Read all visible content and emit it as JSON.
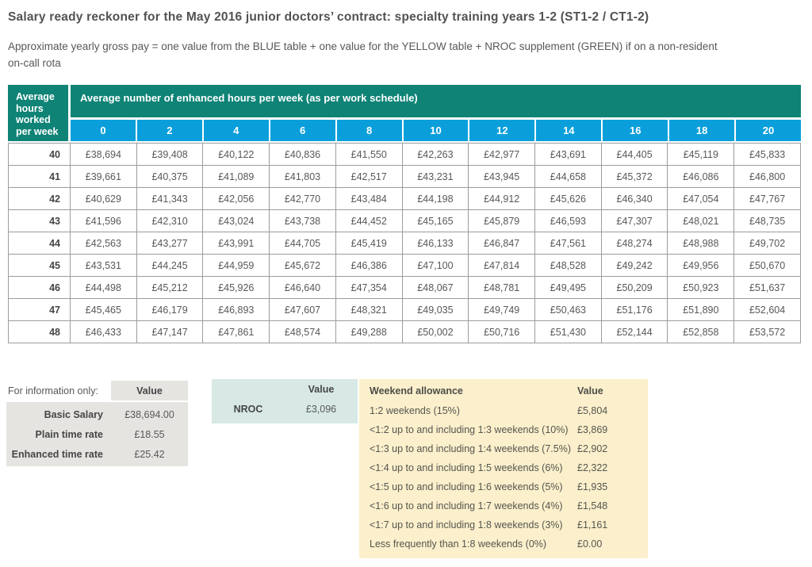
{
  "colors": {
    "teal_header": "#0E8376",
    "blue_header": "#0A9FDB",
    "grid_border": "#9A9C9E",
    "info_bg": "#E6E4E0",
    "nroc_bg": "#D8E9E5",
    "weekend_bg": "#FBEFCC",
    "title_text": "#525254",
    "body_text": "#57585A"
  },
  "header": {
    "title": "Salary ready reckoner for the May 2016 junior doctors’ contract: specialty training years 1-2 (ST1-2 / CT1-2)",
    "subtitle_line1": "Approximate yearly gross pay = one value from the BLUE table + one value for the YELLOW table + NROC supplement (GREEN) if on a non-resident",
    "subtitle_line2": "on-call rota"
  },
  "main_table": {
    "corner_header": "Average hours worked per week",
    "group_header": "Average number of enhanced hours per week (as per work schedule)",
    "column_headers": [
      "0",
      "2",
      "4",
      "6",
      "8",
      "10",
      "12",
      "14",
      "16",
      "18",
      "20"
    ],
    "rows": [
      {
        "hours": "40",
        "values": [
          "£38,694",
          "£39,408",
          "£40,122",
          "£40,836",
          "£41,550",
          "£42,263",
          "£42,977",
          "£43,691",
          "£44,405",
          "£45,119",
          "£45,833"
        ]
      },
      {
        "hours": "41",
        "values": [
          "£39,661",
          "£40,375",
          "£41,089",
          "£41,803",
          "£42,517",
          "£43,231",
          "£43,945",
          "£44,658",
          "£45,372",
          "£46,086",
          "£46,800"
        ]
      },
      {
        "hours": "42",
        "values": [
          "£40,629",
          "£41,343",
          "£42,056",
          "£42,770",
          "£43,484",
          "£44,198",
          "£44,912",
          "£45,626",
          "£46,340",
          "£47,054",
          "£47,767"
        ]
      },
      {
        "hours": "43",
        "values": [
          "£41,596",
          "£42,310",
          "£43,024",
          "£43,738",
          "£44,452",
          "£45,165",
          "£45,879",
          "£46,593",
          "£47,307",
          "£48,021",
          "£48,735"
        ]
      },
      {
        "hours": "44",
        "values": [
          "£42,563",
          "£43,277",
          "£43,991",
          "£44,705",
          "£45,419",
          "£46,133",
          "£46,847",
          "£47,561",
          "£48,274",
          "£48,988",
          "£49,702"
        ]
      },
      {
        "hours": "45",
        "values": [
          "£43,531",
          "£44,245",
          "£44,959",
          "£45,672",
          "£46,386",
          "£47,100",
          "£47,814",
          "£48,528",
          "£49,242",
          "£49,956",
          "£50,670"
        ]
      },
      {
        "hours": "46",
        "values": [
          "£44,498",
          "£45,212",
          "£45,926",
          "£46,640",
          "£47,354",
          "£48,067",
          "£48,781",
          "£49,495",
          "£50,209",
          "£50,923",
          "£51,637"
        ]
      },
      {
        "hours": "47",
        "values": [
          "£45,465",
          "£46,179",
          "£46,893",
          "£47,607",
          "£48,321",
          "£49,035",
          "£49,749",
          "£50,463",
          "£51,176",
          "£51,890",
          "£52,604"
        ]
      },
      {
        "hours": "48",
        "values": [
          "£46,433",
          "£47,147",
          "£47,861",
          "£48,574",
          "£49,288",
          "£50,002",
          "£50,716",
          "£51,430",
          "£52,144",
          "£52,858",
          "£53,572"
        ]
      }
    ]
  },
  "info_table": {
    "caption": "For information only:",
    "value_header": "Value",
    "rows": [
      {
        "label": "Basic Salary",
        "value": "£38,694.00"
      },
      {
        "label": "Plain time rate",
        "value": "£18.55"
      },
      {
        "label": "Enhanced time rate",
        "value": "£25.42"
      }
    ]
  },
  "nroc_table": {
    "value_header": "Value",
    "row": {
      "label": "NROC",
      "value": "£3,096"
    }
  },
  "weekend_table": {
    "label_header": "Weekend allowance",
    "value_header": "Value",
    "rows": [
      {
        "label": "1:2 weekends (15%)",
        "value": "£5,804"
      },
      {
        "label": "<1:2 up to and including 1:3 weekends (10%)",
        "value": "£3,869"
      },
      {
        "label": "<1:3 up to and including 1:4 weekends (7.5%)",
        "value": "£2,902"
      },
      {
        "label": "<1:4 up to and including 1:5 weekends (6%)",
        "value": "£2,322"
      },
      {
        "label": "<1:5 up to and including 1:6 weekends (5%)",
        "value": "£1,935"
      },
      {
        "label": "<1:6 up to and including 1:7 weekends (4%)",
        "value": "£1,548"
      },
      {
        "label": "<1:7 up to and including 1:8 weekends (3%)",
        "value": "£1,161"
      },
      {
        "label": "Less frequently than 1:8 weekends (0%)",
        "value": "£0.00"
      }
    ]
  }
}
